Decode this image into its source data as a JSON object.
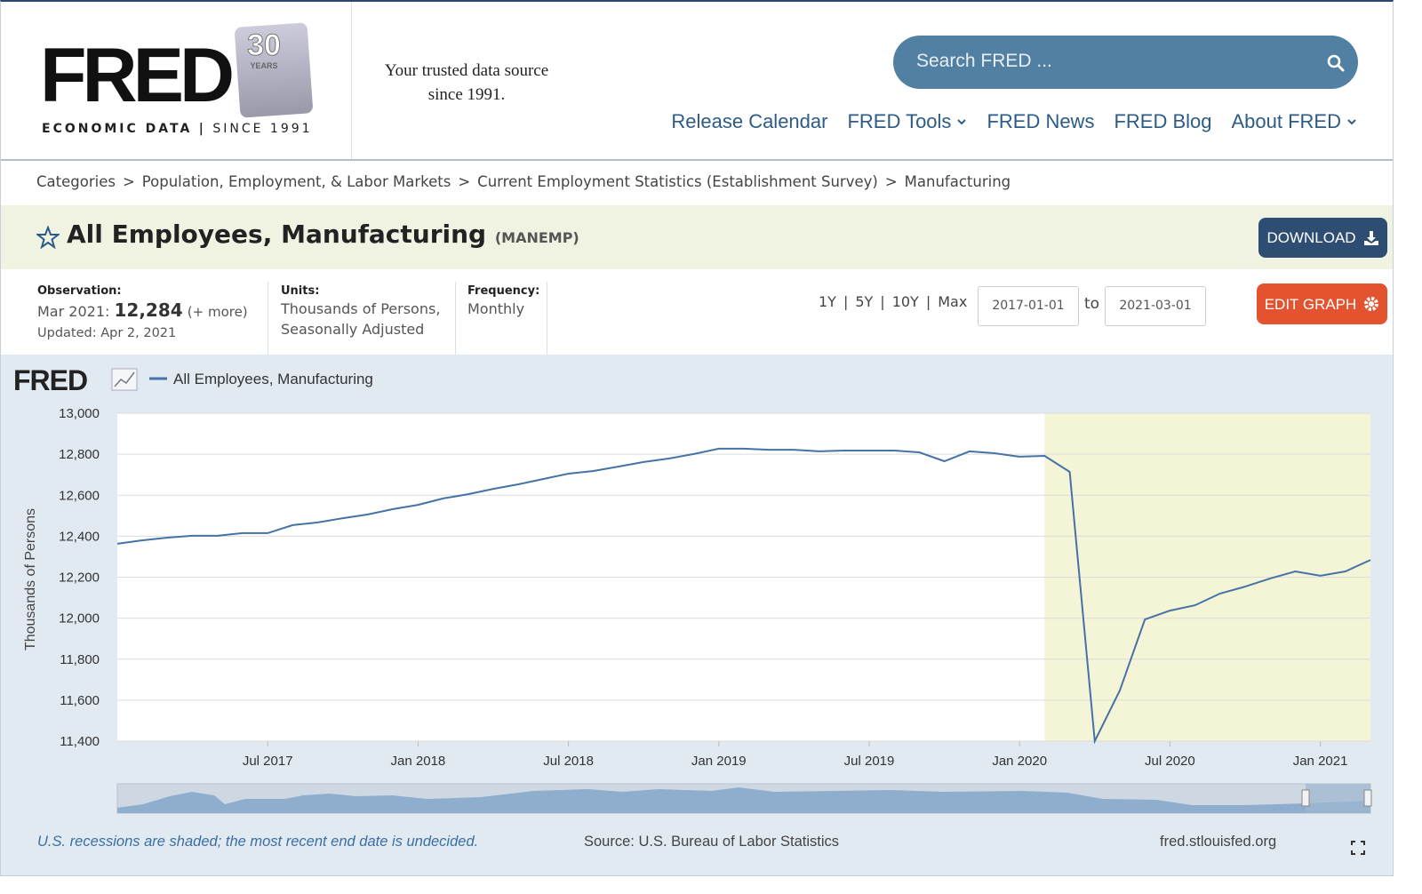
{
  "header": {
    "logo": "FRED",
    "badge_number": "30",
    "badge_text": "YEARS",
    "logo_sub_left": "ECONOMIC DATA",
    "logo_sub_sep": "|",
    "logo_sub_right": "SINCE 1991",
    "tagline": [
      "Your trusted data source",
      "since 1991."
    ],
    "search_placeholder": "Search FRED ...",
    "nav": [
      {
        "label": "Release Calendar",
        "dropdown": false
      },
      {
        "label": "FRED Tools",
        "dropdown": true
      },
      {
        "label": "FRED News",
        "dropdown": false
      },
      {
        "label": "FRED Blog",
        "dropdown": false
      },
      {
        "label": "About FRED",
        "dropdown": true
      }
    ]
  },
  "breadcrumbs": {
    "separator": ">",
    "items": [
      "Categories",
      "Population, Employment, & Labor Markets",
      "Current Employment Statistics (Establishment Survey)",
      "Manufacturing"
    ]
  },
  "series_header": {
    "title": "All Employees, Manufacturing",
    "code": "(MANEMP)",
    "download": "DOWNLOAD"
  },
  "info": {
    "observation_label": "Observation:",
    "observation_date": "Mar 2021:",
    "observation_value": "12,284",
    "more": "(+ more)",
    "updated": "Updated: Apr 2, 2021",
    "units_label": "Units:",
    "units": [
      "Thousands of Persons,",
      "Seasonally Adjusted"
    ],
    "frequency_label": "Frequency:",
    "frequency": "Monthly",
    "ranges": [
      "1Y",
      "5Y",
      "10Y",
      "Max"
    ],
    "range_separator": "|",
    "start_date": "2017-01-01",
    "to": "to",
    "end_date": "2021-03-01",
    "edit_graph": "EDIT GRAPH"
  },
  "chart_data": {
    "type": "line",
    "logo": "FRED",
    "y_label": "Thousands of Persons",
    "x": [
      "2017-01",
      "2017-02",
      "2017-03",
      "2017-04",
      "2017-05",
      "2017-06",
      "2017-07",
      "2017-08",
      "2017-09",
      "2017-10",
      "2017-11",
      "2017-12",
      "2018-01",
      "2018-02",
      "2018-03",
      "2018-04",
      "2018-05",
      "2018-06",
      "2018-07",
      "2018-08",
      "2018-09",
      "2018-10",
      "2018-11",
      "2018-12",
      "2019-01",
      "2019-02",
      "2019-03",
      "2019-04",
      "2019-05",
      "2019-06",
      "2019-07",
      "2019-08",
      "2019-09",
      "2019-10",
      "2019-11",
      "2019-12",
      "2020-01",
      "2020-02",
      "2020-03",
      "2020-04",
      "2020-05",
      "2020-06",
      "2020-07",
      "2020-08",
      "2020-09",
      "2020-10",
      "2020-11",
      "2020-12",
      "2021-01",
      "2021-02",
      "2021-03"
    ],
    "series": [
      {
        "name": "All Employees, Manufacturing",
        "color": "#4572a7",
        "values": [
          12363,
          12380,
          12393,
          12402,
          12402,
          12415,
          12415,
          12454,
          12467,
          12488,
          12506,
          12532,
          12553,
          12584,
          12605,
          12631,
          12653,
          12679,
          12705,
          12718,
          12740,
          12762,
          12779,
          12801,
          12827,
          12827,
          12822,
          12822,
          12814,
          12818,
          12818,
          12818,
          12809,
          12766,
          12814,
          12805,
          12788,
          12792,
          12714,
          11400,
          11647,
          11994,
          12037,
          12063,
          12120,
          12154,
          12194,
          12228,
          12207,
          12228,
          12284
        ]
      }
    ],
    "xlim": [
      "2017-01",
      "2021-03"
    ],
    "xticks": [
      {
        "value": "2017-07",
        "label": "Jul 2017"
      },
      {
        "value": "2018-01",
        "label": "Jan 2018"
      },
      {
        "value": "2018-07",
        "label": "Jul 2018"
      },
      {
        "value": "2019-01",
        "label": "Jan 2019"
      },
      {
        "value": "2019-07",
        "label": "Jul 2019"
      },
      {
        "value": "2020-01",
        "label": "Jan 2020"
      },
      {
        "value": "2020-07",
        "label": "Jul 2020"
      },
      {
        "value": "2021-01",
        "label": "Jan 2021"
      }
    ],
    "ylim": [
      11400,
      13000
    ],
    "yticks": [
      {
        "value": 11400,
        "label": "11,400"
      },
      {
        "value": 11600,
        "label": "11,600"
      },
      {
        "value": 11800,
        "label": "11,800"
      },
      {
        "value": 12000,
        "label": "12,000"
      },
      {
        "value": 12200,
        "label": "12,200"
      },
      {
        "value": 12400,
        "label": "12,400"
      },
      {
        "value": 12600,
        "label": "12,600"
      },
      {
        "value": 12800,
        "label": "12,800"
      },
      {
        "value": 13000,
        "label": "13,000"
      }
    ],
    "grid": true,
    "recession_start": "2020-02",
    "recession_color": "#f4f4d6",
    "note": "U.S. recessions are shaded; the most recent end date is undecided.",
    "source": "Source: U.S. Bureau of Labor Statistics",
    "site": "fred.stlouisfed.org"
  }
}
